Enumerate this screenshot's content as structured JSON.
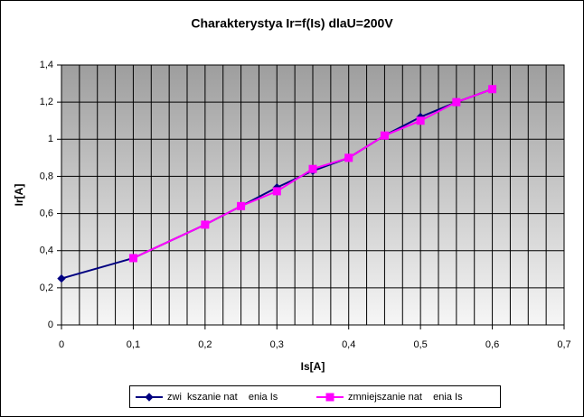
{
  "chart_data": {
    "type": "line",
    "title": "Charakterystya Ir=f(Is) dlaU=200V",
    "xlabel": "Is[A]",
    "ylabel": "Ir[A]",
    "x": [
      0,
      0.1,
      0.2,
      0.25,
      0.3,
      0.35,
      0.4,
      0.45,
      0.5,
      0.55,
      0.6
    ],
    "series": [
      {
        "name": "zwi  kszanie nat    enia Is",
        "color": "#000080",
        "marker": "diamond",
        "values": [
          0.25,
          0.36,
          0.54,
          0.64,
          0.74,
          0.83,
          0.9,
          1.02,
          1.12,
          1.2,
          1.27
        ]
      },
      {
        "name": "zmniejszanie nat    enia Is",
        "color": "#ff00ff",
        "marker": "square",
        "values": [
          null,
          0.36,
          0.54,
          0.64,
          0.72,
          0.84,
          0.9,
          1.02,
          1.1,
          1.2,
          1.27
        ]
      }
    ],
    "xlim": [
      0,
      0.7
    ],
    "xticks": [
      0,
      {
        "value": 0.1,
        "label": "0,1"
      },
      {
        "value": 0.2,
        "label": "0,2"
      },
      {
        "value": 0.3,
        "label": "0,3"
      },
      {
        "value": 0.4,
        "label": "0,4"
      },
      {
        "value": 0.5,
        "label": "0,5"
      },
      {
        "value": 0.6,
        "label": "0,6"
      },
      {
        "value": 0.7,
        "label": "0,7"
      }
    ],
    "ylim": [
      0,
      1.4
    ],
    "yticks": [
      0,
      {
        "value": 0.2,
        "label": "0,2"
      },
      {
        "value": 0.4,
        "label": "0,4"
      },
      {
        "value": 0.6,
        "label": "0,6"
      },
      {
        "value": 0.8,
        "label": "0,8"
      },
      1,
      {
        "value": 1.2,
        "label": "1,2"
      },
      {
        "value": 1.4,
        "label": "1,4"
      }
    ],
    "grid": true,
    "legend": "bottom"
  }
}
